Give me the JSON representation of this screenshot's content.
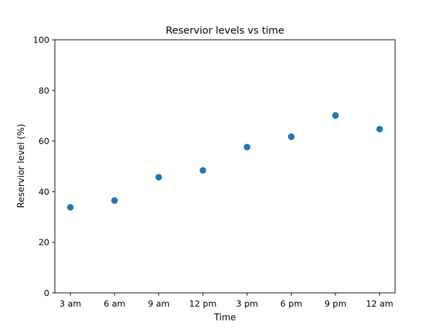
{
  "chart_data": {
    "type": "scatter",
    "title": "Reservior levels vs time",
    "xlabel": "Time",
    "ylabel": "Reservior level (%)",
    "categories": [
      "3 am",
      "6 am",
      "9 am",
      "12 pm",
      "3 pm",
      "6 pm",
      "9 pm",
      "12 am"
    ],
    "values": [
      33.8,
      36.5,
      45.7,
      48.4,
      57.6,
      61.7,
      70.1,
      64.7
    ],
    "ylim": [
      0,
      100
    ],
    "yticks": [
      0,
      20,
      40,
      60,
      80,
      100
    ],
    "grid": false,
    "color": "#1f77b4"
  }
}
